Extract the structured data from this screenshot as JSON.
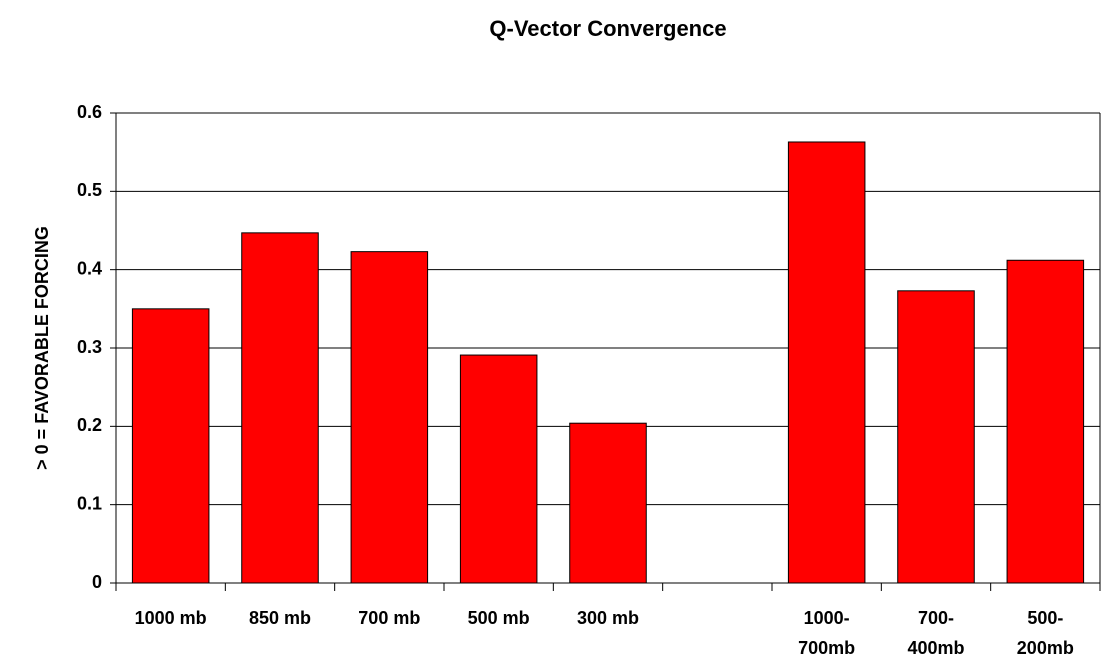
{
  "chart_data": {
    "type": "bar",
    "title": "Q-Vector Convergence",
    "y_label": "> 0 = FAVORABLE FORCING",
    "categories": [
      "1000 mb",
      "850 mb",
      "700 mb",
      "500 mb",
      "300 mb",
      null,
      "1000-\n700mb",
      "700-\n400mb",
      "500-\n200mb"
    ],
    "values": [
      0.35,
      0.447,
      0.423,
      0.291,
      0.204,
      null,
      0.563,
      0.373,
      0.412
    ],
    "color": "#ff0000",
    "ylim": [
      0,
      0.6
    ],
    "yticks": [
      0,
      0.1,
      0.2,
      0.3,
      0.4,
      0.5,
      0.6
    ],
    "grid": true
  }
}
